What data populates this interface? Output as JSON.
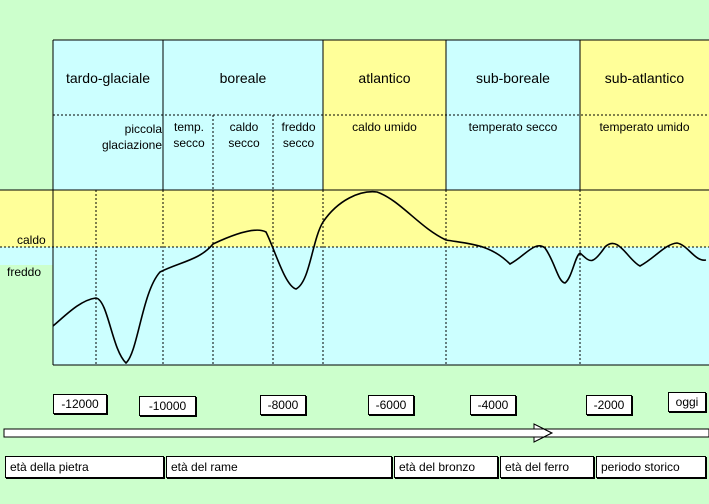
{
  "periods": [
    {
      "name": "tardo-glaciale"
    },
    {
      "name": "boreale"
    },
    {
      "name": "atlantico"
    },
    {
      "name": "sub-boreale"
    },
    {
      "name": "sub-atlantico"
    }
  ],
  "subperiods": {
    "piccola_line1": "piccola",
    "piccola_line2": "glaciazione",
    "temp_line1": "temp.",
    "temp_line2": "secco",
    "caldo_line1": "caldo",
    "caldo_line2": "secco",
    "freddo_line1": "freddo",
    "freddo_line2": "secco",
    "atlantico": "caldo umido",
    "subboreale": "temperato secco",
    "subatlantico": "temperato umido"
  },
  "side_labels": {
    "warm": "caldo",
    "cold": "freddo"
  },
  "dates": [
    "-12000",
    "-10000",
    "-8000",
    "-6000",
    "-4000",
    "-2000",
    "oggi"
  ],
  "ages": [
    "età della pietra",
    "età del rame",
    "età del bronzo",
    "età del ferro",
    "periodo storico"
  ],
  "colors": {
    "background": "#ccffcc",
    "cyan": "#ccffff",
    "yellow": "#ffff99"
  }
}
